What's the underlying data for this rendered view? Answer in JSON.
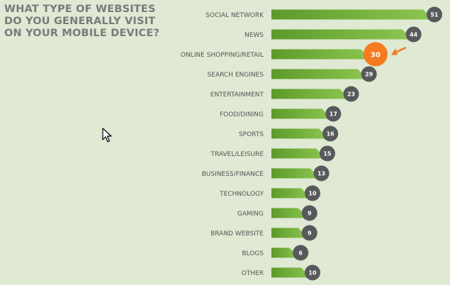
{
  "chart_data": {
    "type": "bar",
    "orientation": "horizontal",
    "title": "WHAT TYPE OF WEBSITES DO YOU GENERALLY VISIT ON YOUR MOBILE DEVICE?",
    "categories": [
      "SOCIAL NETWORK",
      "NEWS",
      "ONLINE SHOPPING/RETAIL",
      "SEARCH ENGINES",
      "ENTERTAINMENT",
      "FOOD/DINING",
      "SPORTS",
      "TRAVEL/LEISURE",
      "BUSINESS/FINANCE",
      "TECHNOLOGY",
      "GAMING",
      "BRAND WEBSITE",
      "BLOGS",
      "OTHER"
    ],
    "values": [
      51,
      44,
      30,
      29,
      23,
      17,
      16,
      15,
      13,
      10,
      9,
      9,
      6,
      10
    ],
    "highlight": "ONLINE SHOPPING/RETAIL",
    "xlim": [
      0,
      51
    ],
    "grid": false,
    "colors": {
      "bar_light": "#8dc650",
      "bar_dark": "#5c9a2a",
      "badge": "#58595b",
      "highlight": "#f47b20",
      "label": "#555555"
    }
  }
}
